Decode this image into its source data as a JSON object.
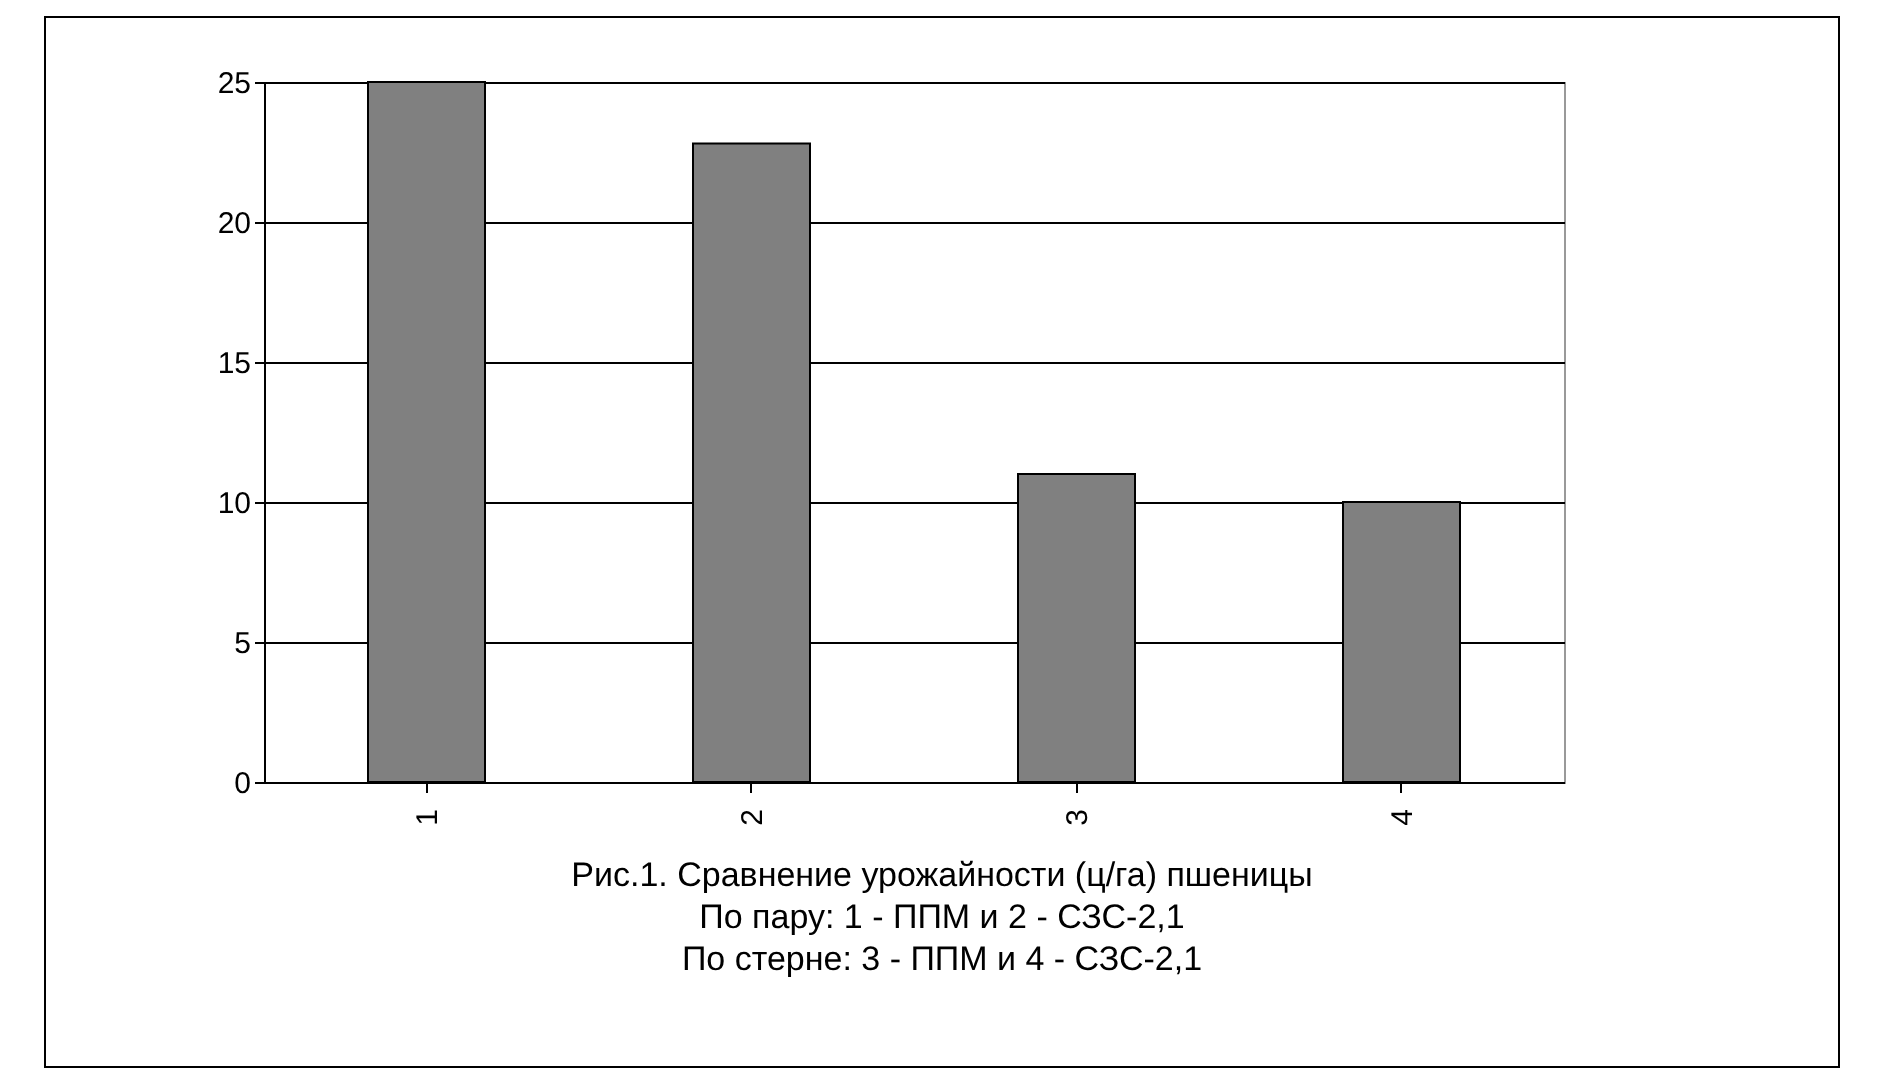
{
  "chart_data": {
    "type": "bar",
    "categories": [
      "1",
      "2",
      "3",
      "4"
    ],
    "values": [
      25,
      22.8,
      11,
      10
    ],
    "color": "#808080",
    "ylim": [
      0,
      25
    ],
    "yticks": [
      0,
      5,
      10,
      15,
      20,
      25
    ],
    "grid": "y",
    "annotations": [
      "Рис.1. Сравнение урожайности (ц/га) пшеницы",
      "По пару: 1 - ППМ и 2 - СЗС-2,1",
      "По стерне: 3 - ППМ и 4 - СЗС-2,1"
    ]
  }
}
